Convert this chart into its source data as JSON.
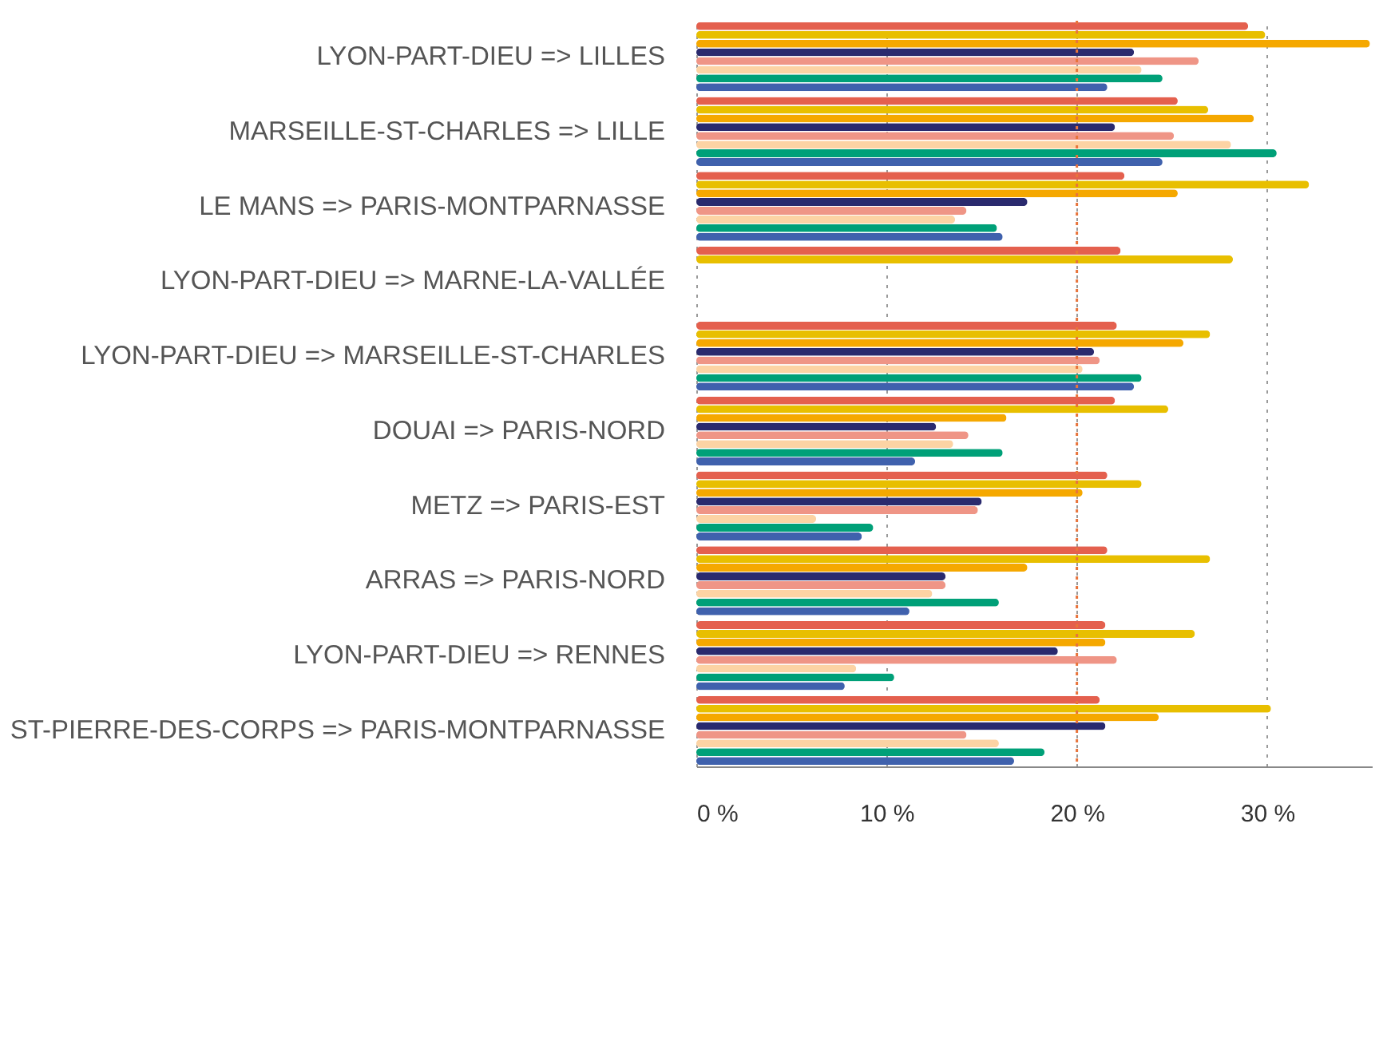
{
  "chart_data": {
    "type": "bar",
    "orientation": "horizontal",
    "categories": [
      "LYON-PART-DIEU => LILLES",
      "MARSEILLE-ST-CHARLES => LILLE",
      "LE MANS => PARIS-MONTPARNASSE",
      "LYON-PART-DIEU => MARNE-LA-VALLÉE",
      "LYON-PART-DIEU => MARSEILLE-ST-CHARLES",
      "DOUAI => PARIS-NORD",
      "METZ => PARIS-EST",
      "ARRAS => PARIS-NORD",
      "LYON-PART-DIEU => RENNES",
      "ST-PIERRE-DES-CORPS => PARIS-MONTPARNASSE"
    ],
    "series": [
      {
        "color": "#e4604e",
        "values": [
          29.0,
          25.3,
          22.5,
          22.3,
          22.1,
          22.0,
          21.6,
          21.6,
          21.5,
          21.2
        ]
      },
      {
        "color": "#e8bf00",
        "values": [
          29.9,
          26.9,
          32.2,
          28.2,
          27.0,
          24.8,
          23.4,
          27.0,
          26.2,
          30.2
        ]
      },
      {
        "color": "#f5a800",
        "values": [
          35.4,
          29.3,
          25.3,
          null,
          25.6,
          16.3,
          20.3,
          17.4,
          21.5,
          24.3
        ]
      },
      {
        "color": "#2a2a6e",
        "values": [
          23.0,
          22.0,
          17.4,
          null,
          20.9,
          12.6,
          15.0,
          13.1,
          19.0,
          21.5
        ]
      },
      {
        "color": "#ef9586",
        "values": [
          26.4,
          25.1,
          14.2,
          null,
          21.2,
          14.3,
          14.8,
          13.1,
          22.1,
          14.2
        ]
      },
      {
        "color": "#fcd3a4",
        "values": [
          23.4,
          28.1,
          13.6,
          null,
          20.3,
          13.5,
          6.3,
          12.4,
          8.4,
          15.9
        ]
      },
      {
        "color": "#00a078",
        "values": [
          24.5,
          30.5,
          15.8,
          null,
          23.4,
          16.1,
          9.3,
          15.9,
          10.4,
          18.3
        ]
      },
      {
        "color": "#3f61ad",
        "values": [
          21.6,
          24.5,
          16.1,
          null,
          23.0,
          11.5,
          8.7,
          11.2,
          7.8,
          16.7
        ]
      }
    ],
    "xlim": [
      0,
      35.5
    ],
    "xticks": [
      {
        "value": 0,
        "label": "0 %"
      },
      {
        "value": 10,
        "label": "10 %"
      },
      {
        "value": 20,
        "label": "20 %"
      },
      {
        "value": 30,
        "label": "30 %"
      }
    ],
    "grid": "x",
    "ref_lines": [
      {
        "axis": "x",
        "value": 20,
        "color": "#e8743b",
        "line_style": "dotted"
      }
    ],
    "legend": false
  }
}
